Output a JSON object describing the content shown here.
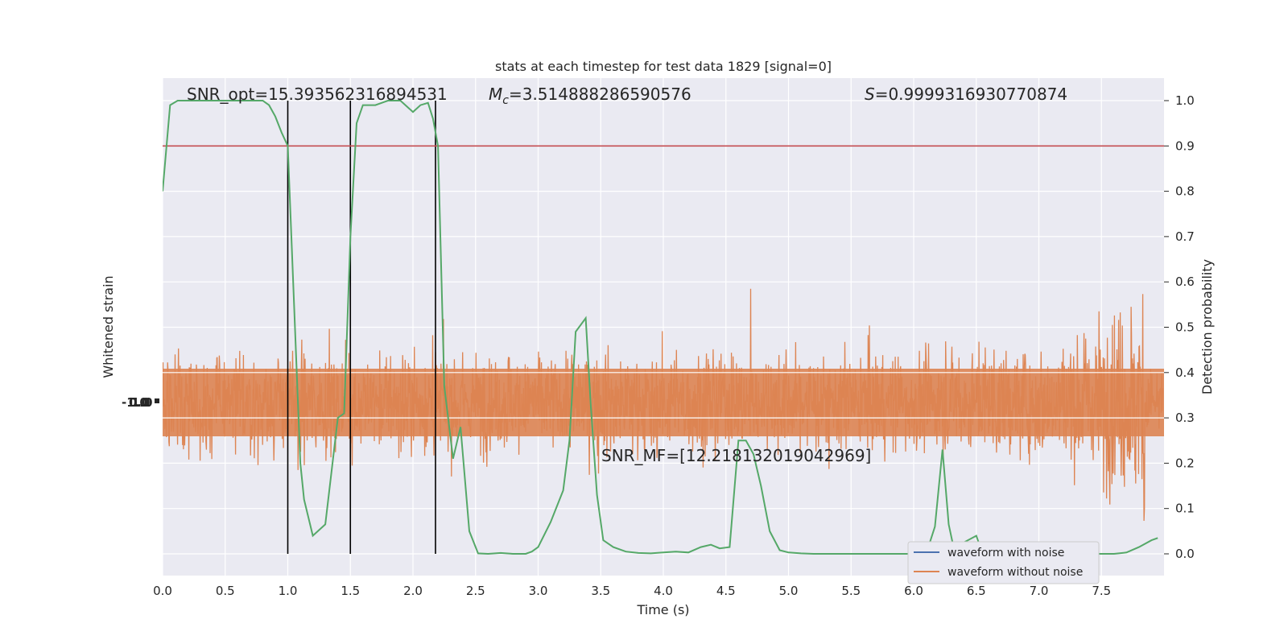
{
  "chart_data": {
    "type": "line",
    "title": "stats at each timestep for test data 1829 [signal=0]",
    "xlabel": "Time (s)",
    "ylabel_left": "Whitened strain",
    "ylabel_right": "Detection probability",
    "xlim": [
      0.0,
      8.0
    ],
    "ylim_right": [
      -0.05,
      1.05
    ],
    "xticks": [
      "0.0",
      "0.5",
      "1.0",
      "1.5",
      "2.0",
      "2.5",
      "3.0",
      "3.5",
      "4.0",
      "4.5",
      "5.0",
      "5.5",
      "6.0",
      "6.5",
      "7.0",
      "7.5"
    ],
    "yticks_right": [
      "0.0",
      "0.1",
      "0.2",
      "0.3",
      "0.4",
      "0.5",
      "0.6",
      "0.7",
      "0.8",
      "0.9",
      "1.0"
    ],
    "left_tick_labels": [
      "-1.0",
      "0.0",
      "1.0"
    ],
    "threshold": 0.9,
    "threshold_color": "#c44e52",
    "vlines": [
      1.0,
      1.5,
      2.18
    ],
    "grid": true,
    "legend_position": "lower-right",
    "series": [
      {
        "name": "waveform with noise",
        "color": "#4c72b0",
        "values_desc": ""
      },
      {
        "name": "waveform without noise",
        "color": "#dd8452"
      }
    ],
    "noise_envelope": {
      "x": [
        0.0,
        1.0,
        2.0,
        3.0,
        4.0,
        5.0,
        6.0,
        7.0,
        7.3,
        7.6,
        7.8,
        7.85
      ],
      "amplitude": [
        0.55,
        0.58,
        0.56,
        0.55,
        0.58,
        0.55,
        0.57,
        0.6,
        0.75,
        1.0,
        1.25,
        1.8
      ]
    },
    "detection_probability": {
      "color": "#55a868",
      "x": [
        0.0,
        0.06,
        0.12,
        0.2,
        0.3,
        0.4,
        0.5,
        0.6,
        0.7,
        0.8,
        0.85,
        0.9,
        0.95,
        1.0,
        1.05,
        1.1,
        1.13,
        1.2,
        1.3,
        1.4,
        1.45,
        1.5,
        1.55,
        1.6,
        1.65,
        1.7,
        1.8,
        1.9,
        2.0,
        2.06,
        2.12,
        2.16,
        2.2,
        2.25,
        2.32,
        2.38,
        2.45,
        2.52,
        2.6,
        2.7,
        2.8,
        2.9,
        2.95,
        3.0,
        3.1,
        3.2,
        3.25,
        3.3,
        3.38,
        3.42,
        3.47,
        3.52,
        3.6,
        3.7,
        3.8,
        3.9,
        4.0,
        4.1,
        4.2,
        4.3,
        4.38,
        4.45,
        4.53,
        4.6,
        4.66,
        4.72,
        4.78,
        4.85,
        4.93,
        5.0,
        5.1,
        5.2,
        5.4,
        5.6,
        5.8,
        6.0,
        6.1,
        6.17,
        6.23,
        6.28,
        6.33,
        6.4,
        6.5,
        6.55,
        6.6,
        6.7,
        6.8,
        6.9,
        7.0,
        7.2,
        7.4,
        7.6,
        7.7,
        7.8,
        7.9,
        7.95
      ],
      "y": [
        0.8,
        0.99,
        1.0,
        1.0,
        1.0,
        1.0,
        1.0,
        1.0,
        1.0,
        1.0,
        0.99,
        0.965,
        0.93,
        0.9,
        0.55,
        0.2,
        0.12,
        0.04,
        0.065,
        0.3,
        0.31,
        0.7,
        0.95,
        0.99,
        0.99,
        0.99,
        1.0,
        1.0,
        0.975,
        0.99,
        0.995,
        0.96,
        0.9,
        0.37,
        0.21,
        0.28,
        0.05,
        0.001,
        0.0,
        0.002,
        0.0,
        0.0,
        0.005,
        0.015,
        0.07,
        0.14,
        0.25,
        0.49,
        0.52,
        0.33,
        0.13,
        0.03,
        0.015,
        0.005,
        0.002,
        0.001,
        0.003,
        0.005,
        0.003,
        0.015,
        0.02,
        0.012,
        0.015,
        0.25,
        0.25,
        0.22,
        0.15,
        0.05,
        0.008,
        0.003,
        0.001,
        0.0,
        0.0,
        0.0,
        0.0,
        0.0,
        0.0,
        0.06,
        0.23,
        0.065,
        0.0,
        0.025,
        0.04,
        0.001,
        0.0,
        0.0,
        0.0,
        0.0,
        0.0,
        0.0,
        0.0,
        0.0,
        0.003,
        0.015,
        0.03,
        0.035
      ]
    },
    "annotations": {
      "snr_opt": "SNR_opt=15.393562316894531",
      "mc": "=3.514888286590576",
      "mc_symbol": "M",
      "mc_sub": "c",
      "s_val": "=0.9999316930770874",
      "s_symbol": "S",
      "snr_mf": "SNR_MF=[12.218132019042969]"
    }
  }
}
